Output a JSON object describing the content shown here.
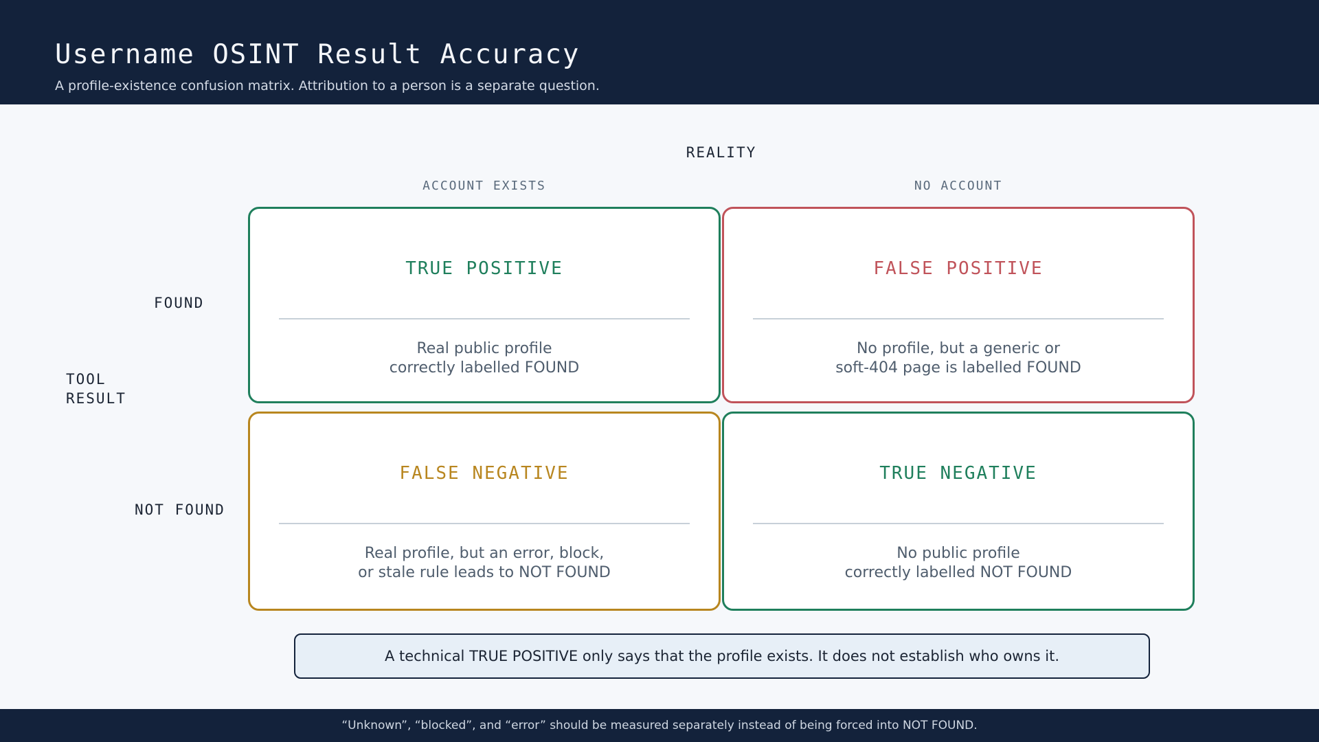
{
  "header": {
    "title": "Username OSINT Result Accuracy",
    "subtitle": "A profile-existence confusion matrix. Attribution to a person is a separate question."
  },
  "axes": {
    "reality_label": "REALITY",
    "col_account_exists": "ACCOUNT EXISTS",
    "col_no_account": "NO ACCOUNT",
    "tool_result_label": "TOOL\nRESULT",
    "row_found": "FOUND",
    "row_not_found": "NOT FOUND"
  },
  "cells": {
    "true_positive": {
      "title": "TRUE POSITIVE",
      "line1": "Real public profile",
      "line2": "correctly labelled FOUND",
      "color": "#1f7f5c"
    },
    "false_positive": {
      "title": "FALSE POSITIVE",
      "line1": "No profile, but a generic or",
      "line2": "soft-404 page is labelled FOUND",
      "color": "#c0535a"
    },
    "false_negative": {
      "title": "FALSE NEGATIVE",
      "line1": "Real profile, but an error, block,",
      "line2": "or stale rule leads to NOT FOUND",
      "color": "#b8861f"
    },
    "true_negative": {
      "title": "TRUE NEGATIVE",
      "line1": "No public profile",
      "line2": "correctly labelled NOT FOUND",
      "color": "#1f7f5c"
    }
  },
  "note": "A technical TRUE POSITIVE only says that the profile exists. It does not establish who owns it.",
  "footer": "“Unknown”, “blocked”, and “error” should be measured separately instead of being forced into NOT FOUND."
}
